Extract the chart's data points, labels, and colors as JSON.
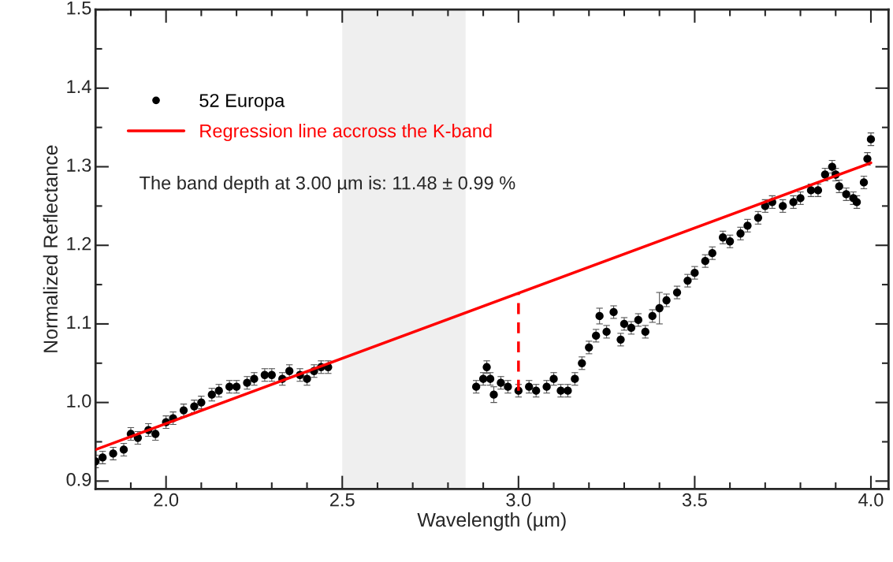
{
  "chart_data": {
    "type": "scatter",
    "xlabel": "Wavelength (µm)",
    "ylabel": "Normalized Reflectance",
    "xlim": [
      1.8,
      4.05
    ],
    "ylim": [
      0.89,
      1.5
    ],
    "xticks": [
      {
        "value": 2.0,
        "label": "2.0"
      },
      {
        "value": 2.5,
        "label": "2.5"
      },
      {
        "value": 3.0,
        "label": "3.0"
      },
      {
        "value": 3.5,
        "label": "3.5"
      },
      {
        "value": 4.0,
        "label": "4.0"
      }
    ],
    "yticks": [
      {
        "value": 0.9,
        "label": "0.9"
      },
      {
        "value": 1.0,
        "label": "1.0"
      },
      {
        "value": 1.1,
        "label": "1.1"
      },
      {
        "value": 1.2,
        "label": "1.2"
      },
      {
        "value": 1.3,
        "label": "1.3"
      },
      {
        "value": 1.4,
        "label": "1.4"
      },
      {
        "value": 1.5,
        "label": "1.5"
      }
    ],
    "grid": false,
    "legend": "top left",
    "marker": "circle",
    "bands": [
      {
        "axis": "x",
        "from": 2.5,
        "to": 2.85,
        "color": "#efefef"
      }
    ],
    "annotations": [
      "The band depth at 3.00 µm is: 11.48 ± 0.99 %"
    ],
    "series": [
      {
        "name": "52 Europa",
        "color": "#000000",
        "x": [
          1.8,
          1.82,
          1.85,
          1.88,
          1.9,
          1.92,
          1.95,
          1.97,
          2.0,
          2.02,
          2.05,
          2.08,
          2.1,
          2.13,
          2.15,
          2.18,
          2.2,
          2.23,
          2.25,
          2.28,
          2.3,
          2.33,
          2.35,
          2.38,
          2.4,
          2.42,
          2.44,
          2.46,
          2.88,
          2.9,
          2.91,
          2.92,
          2.93,
          2.95,
          2.97,
          3.0,
          3.03,
          3.05,
          3.08,
          3.1,
          3.12,
          3.14,
          3.16,
          3.18,
          3.2,
          3.22,
          3.23,
          3.25,
          3.27,
          3.29,
          3.3,
          3.32,
          3.34,
          3.36,
          3.38,
          3.4,
          3.42,
          3.45,
          3.48,
          3.5,
          3.53,
          3.55,
          3.58,
          3.6,
          3.63,
          3.65,
          3.68,
          3.7,
          3.72,
          3.75,
          3.78,
          3.8,
          3.83,
          3.85,
          3.87,
          3.89,
          3.9,
          3.91,
          3.93,
          3.95,
          3.96,
          3.98,
          3.99,
          4.0
        ],
        "values": [
          0.925,
          0.93,
          0.935,
          0.94,
          0.96,
          0.955,
          0.965,
          0.96,
          0.975,
          0.98,
          0.99,
          0.995,
          1.0,
          1.01,
          1.015,
          1.02,
          1.02,
          1.025,
          1.03,
          1.035,
          1.035,
          1.03,
          1.04,
          1.035,
          1.03,
          1.04,
          1.045,
          1.045,
          1.02,
          1.03,
          1.045,
          1.03,
          1.01,
          1.025,
          1.02,
          1.015,
          1.02,
          1.015,
          1.02,
          1.03,
          1.015,
          1.015,
          1.03,
          1.05,
          1.07,
          1.085,
          1.11,
          1.09,
          1.115,
          1.08,
          1.1,
          1.095,
          1.105,
          1.09,
          1.11,
          1.12,
          1.13,
          1.14,
          1.155,
          1.165,
          1.18,
          1.19,
          1.21,
          1.205,
          1.215,
          1.225,
          1.235,
          1.25,
          1.255,
          1.25,
          1.255,
          1.26,
          1.27,
          1.27,
          1.29,
          1.3,
          1.29,
          1.275,
          1.265,
          1.26,
          1.255,
          1.28,
          1.31,
          1.335
        ],
        "errors": [
          0.008,
          0.008,
          0.008,
          0.008,
          0.008,
          0.008,
          0.008,
          0.008,
          0.008,
          0.008,
          0.008,
          0.008,
          0.008,
          0.008,
          0.008,
          0.008,
          0.008,
          0.008,
          0.008,
          0.008,
          0.008,
          0.008,
          0.008,
          0.008,
          0.008,
          0.008,
          0.008,
          0.008,
          0.008,
          0.008,
          0.008,
          0.008,
          0.01,
          0.008,
          0.008,
          0.008,
          0.008,
          0.008,
          0.008,
          0.008,
          0.008,
          0.008,
          0.008,
          0.008,
          0.008,
          0.008,
          0.01,
          0.008,
          0.008,
          0.008,
          0.008,
          0.008,
          0.008,
          0.008,
          0.008,
          0.02,
          0.008,
          0.008,
          0.008,
          0.008,
          0.008,
          0.008,
          0.008,
          0.008,
          0.008,
          0.008,
          0.008,
          0.008,
          0.008,
          0.008,
          0.008,
          0.008,
          0.008,
          0.008,
          0.008,
          0.008,
          0.008,
          0.008,
          0.008,
          0.008,
          0.008,
          0.008,
          0.008,
          0.008
        ]
      },
      {
        "name": "Regression line accross the K-band",
        "type": "line",
        "color": "#ff0000",
        "marker": "none",
        "line_style": "solid",
        "x": [
          1.8,
          4.0
        ],
        "values": [
          0.94,
          1.305
        ]
      },
      {
        "type": "line",
        "color": "#ff0000",
        "marker": "none",
        "line_style": "dashed",
        "x": [
          3.0,
          3.0
        ],
        "values": [
          1.015,
          1.138
        ]
      }
    ]
  }
}
